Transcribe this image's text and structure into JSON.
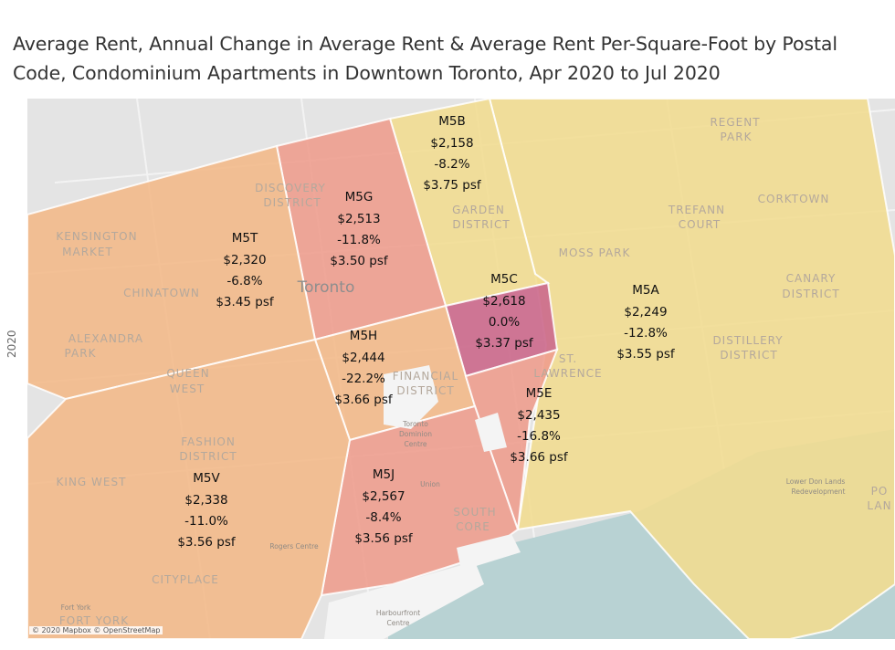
{
  "title": "Average Rent, Annual Change in Average Rent & Average Rent Per-Square-Foot by Postal Code, Condominium Apartments in Downtown Toronto, Apr 2020 to Jul 2020",
  "side_label": "2020",
  "attribution": "© 2020 Mapbox © OpenStreetMap",
  "city_label": "Toronto",
  "colors": {
    "low": "#f1dc8f",
    "mid": "#f2b888",
    "high": "#ee9c8c",
    "highest": "#cc6b8d",
    "water": "#b8d2d3",
    "land": "#e4e4e4"
  },
  "regions": [
    {
      "code": "M5T",
      "rent": "$2,320",
      "change": "-6.8%",
      "psf": "$3.45 psf",
      "color": "mid"
    },
    {
      "code": "M5G",
      "rent": "$2,513",
      "change": "-11.8%",
      "psf": "$3.50 psf",
      "color": "high"
    },
    {
      "code": "M5B",
      "rent": "$2,158",
      "change": "-8.2%",
      "psf": "$3.75 psf",
      "color": "low"
    },
    {
      "code": "M5C",
      "rent": "$2,618",
      "change": "0.0%",
      "psf": "$3.37 psf",
      "color": "highest"
    },
    {
      "code": "M5A",
      "rent": "$2,249",
      "change": "-12.8%",
      "psf": "$3.55 psf",
      "color": "low"
    },
    {
      "code": "M5H",
      "rent": "$2,444",
      "change": "-22.2%",
      "psf": "$3.66 psf",
      "color": "mid"
    },
    {
      "code": "M5E",
      "rent": "$2,435",
      "change": "-16.8%",
      "psf": "$3.66 psf",
      "color": "high"
    },
    {
      "code": "M5V",
      "rent": "$2,338",
      "change": "-11.0%",
      "psf": "$3.56 psf",
      "color": "mid"
    },
    {
      "code": "M5J",
      "rent": "$2,567",
      "change": "-8.4%",
      "psf": "$3.56 psf",
      "color": "high"
    }
  ],
  "places": [
    "DISCOVERY",
    "DISTRICT",
    "KENSINGTON",
    "MARKET",
    "CHINATOWN",
    "ALEXANDRA",
    "PARK",
    "QUEEN",
    "WEST",
    "FASHION",
    "DISTRICT",
    "KING WEST",
    "CITYPLACE",
    "FORT YORK",
    "GARDEN",
    "DISTRICT",
    "MOSS PARK",
    "REGENT",
    "PARK",
    "CORKTOWN",
    "TREFANN",
    "COURT",
    "CANARY",
    "DISTRICT",
    "DISTILLERY",
    "DISTRICT",
    "ST.",
    "LAWRENCE",
    "SOUTH",
    "CORE",
    "FINANCIAL",
    "DISTRICT",
    "PO",
    "LAN"
  ],
  "small_places": [
    "Toronto",
    "Dominion",
    "Centre",
    "Union",
    "Rogers Centre",
    "Fort York",
    "Harbourfront",
    "Centre",
    "Lower Don Lands",
    "Redevelopment"
  ]
}
